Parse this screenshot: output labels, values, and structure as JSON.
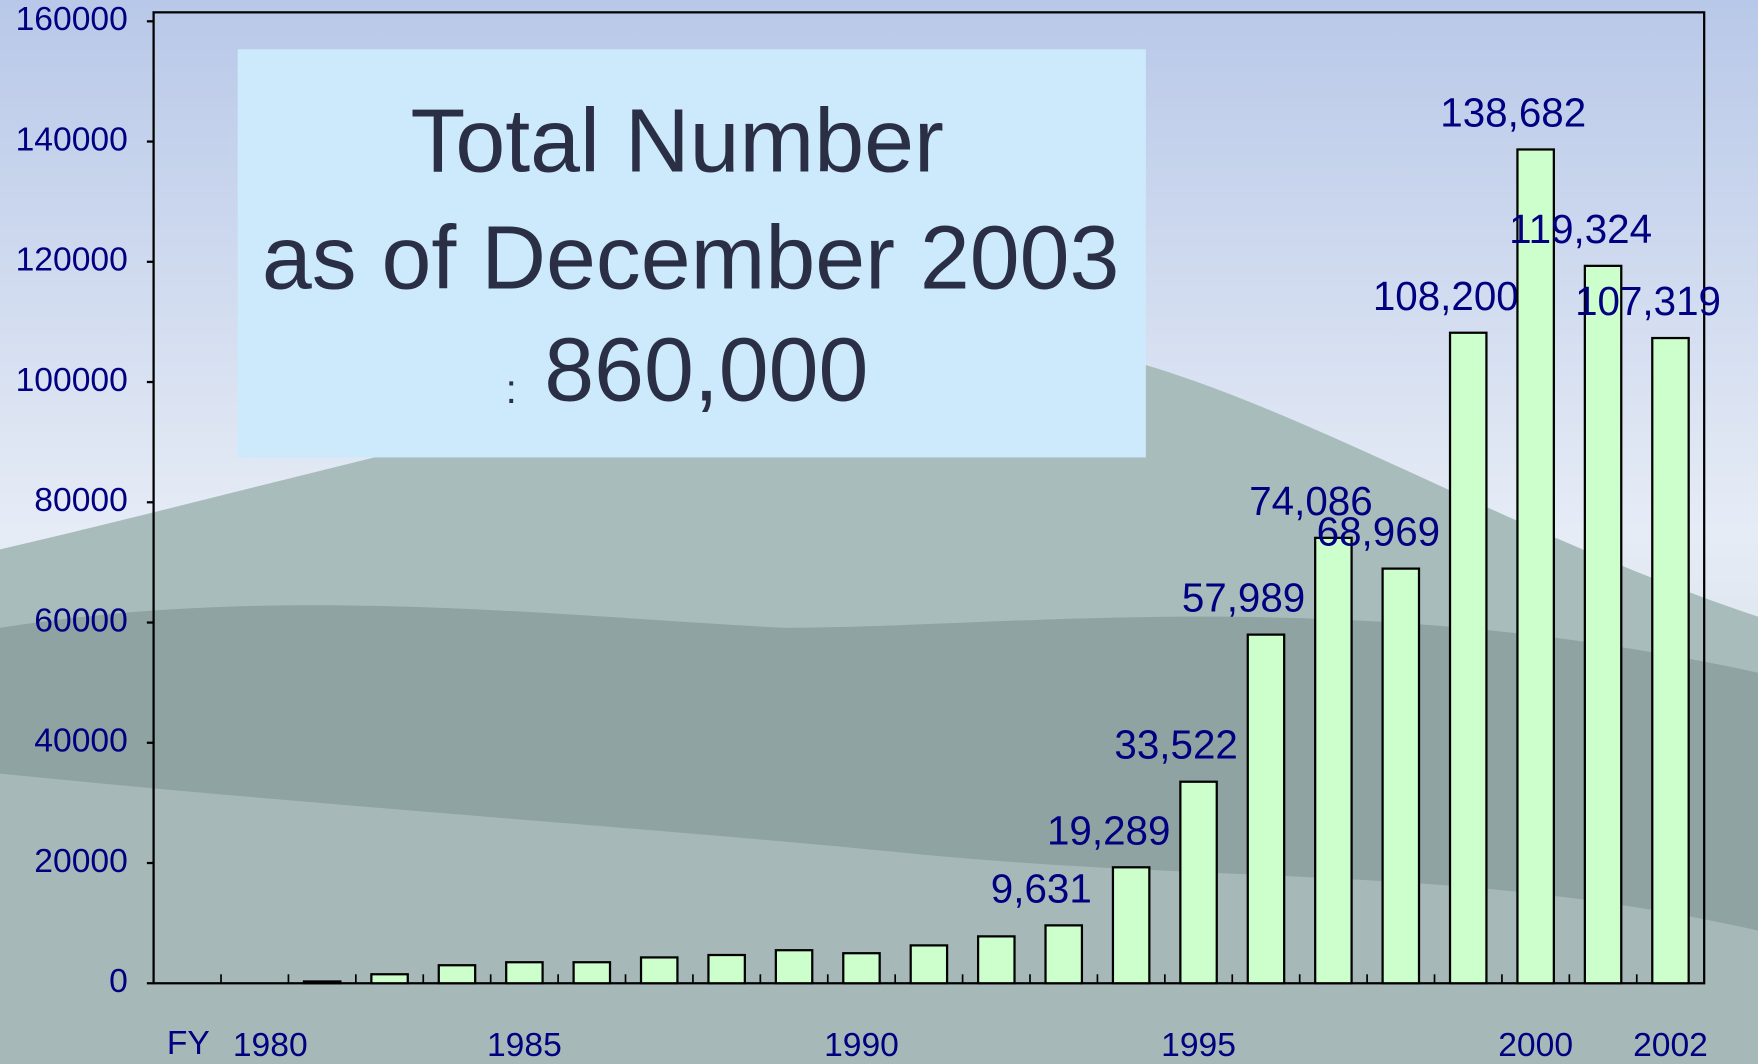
{
  "chart_data": {
    "type": "bar",
    "annotations": [
      "Total Number",
      "as of December 2003",
      ":",
      "860,000"
    ],
    "x_prefix": "FY",
    "categories": [
      "1980",
      null,
      null,
      null,
      null,
      "1985",
      null,
      null,
      null,
      null,
      "1990",
      null,
      null,
      null,
      null,
      "1995",
      null,
      null,
      null,
      null,
      "2000",
      null,
      "2002"
    ],
    "values": [
      null,
      null,
      300,
      1500,
      3000,
      3500,
      3500,
      4300,
      4700,
      5500,
      5000,
      6300,
      7800,
      9631,
      19289,
      33522,
      57989,
      74086,
      68969,
      108200,
      138682,
      119324,
      107319
    ],
    "value_labels": [
      null,
      null,
      null,
      null,
      null,
      null,
      null,
      null,
      null,
      null,
      null,
      null,
      null,
      "9,631",
      "19,289",
      "33,522",
      "57,989",
      "74,086",
      "68,969",
      "108,200",
      "138,682",
      "119,324",
      "107,319"
    ],
    "color": "#ccffcc",
    "ylim": [
      0,
      160000
    ],
    "yticks": [
      0,
      20000,
      40000,
      60000,
      80000,
      100000,
      120000,
      140000,
      160000
    ],
    "grid": false
  }
}
